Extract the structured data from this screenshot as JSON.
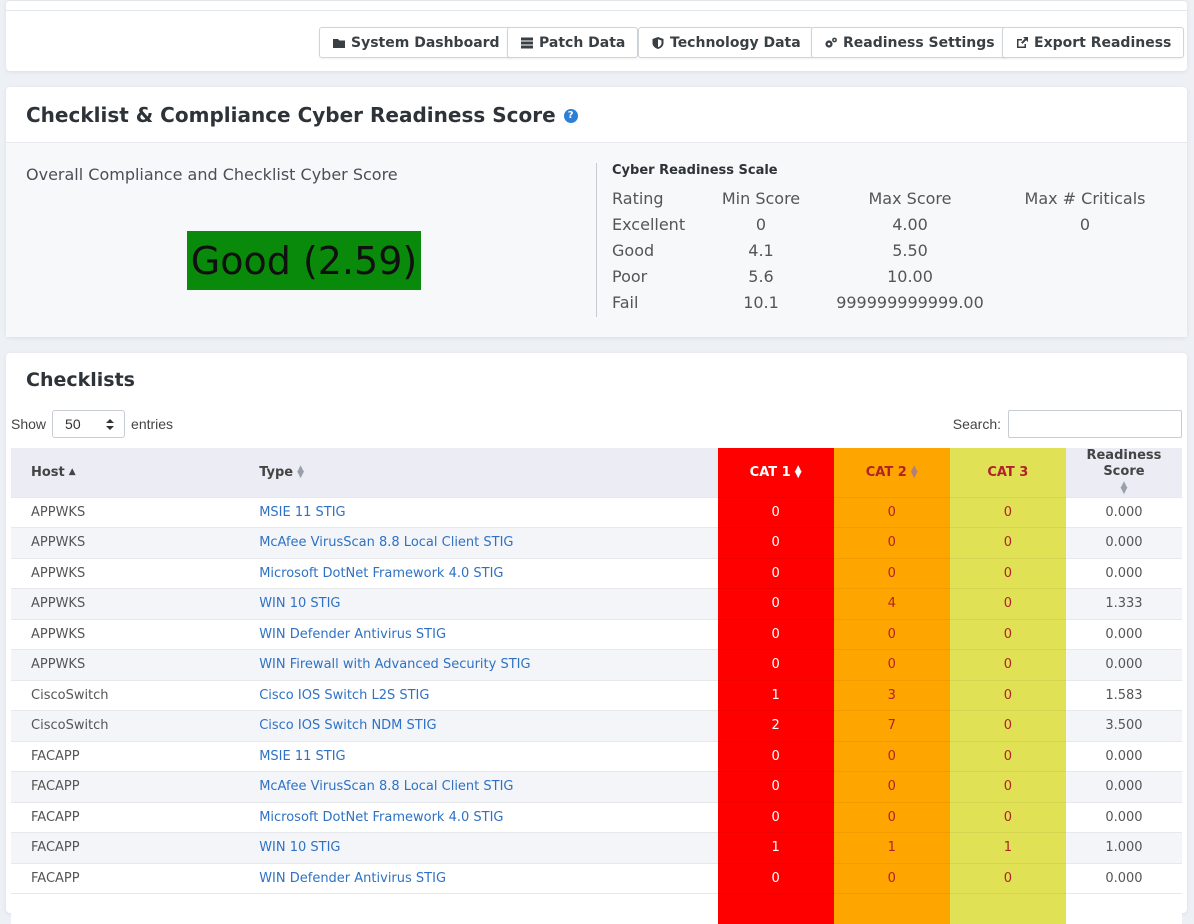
{
  "toolbar": {
    "buttons": [
      {
        "label": "System Dashboard",
        "icon": "folder-icon"
      },
      {
        "label": "Patch Data",
        "icon": "server-icon"
      },
      {
        "label": "Technology Data",
        "icon": "shield-icon"
      },
      {
        "label": "Readiness Settings",
        "icon": "gears-icon"
      },
      {
        "label": "Export Readiness",
        "icon": "external-link-icon"
      }
    ]
  },
  "score": {
    "title": "Checklist & Compliance Cyber Readiness Score",
    "help": "?",
    "overall_label": "Overall Compliance and Checklist Cyber Score",
    "value": "Good (2.59)",
    "value_color": "#0a8a0a",
    "scale": {
      "title": "Cyber Readiness Scale",
      "headers": [
        "Rating",
        "Min Score",
        "Max Score",
        "Max # Criticals"
      ],
      "rows": [
        {
          "rating": "Excellent",
          "min": "0",
          "max": "4.00",
          "crit": "0"
        },
        {
          "rating": "Good",
          "min": "4.1",
          "max": "5.50",
          "crit": ""
        },
        {
          "rating": "Poor",
          "min": "5.6",
          "max": "10.00",
          "crit": ""
        },
        {
          "rating": "Fail",
          "min": "10.1",
          "max": "999999999999.00",
          "crit": ""
        }
      ]
    }
  },
  "checklists": {
    "title": "Checklists",
    "show_label": "Show",
    "entries_value": "50",
    "entries_label": "entries",
    "search_label": "Search:",
    "search_value": "",
    "columns": {
      "host": "Host",
      "type": "Type",
      "cat1": "CAT 1",
      "cat2": "CAT 2",
      "cat3": "CAT 3",
      "readiness": "Readiness Score"
    },
    "colors": {
      "cat1": "#ff0000",
      "cat2": "#ffa500",
      "cat3": "#e1e156"
    },
    "rows": [
      {
        "host": "APPWKS",
        "type": "MSIE 11 STIG",
        "cat1": "0",
        "cat2": "0",
        "cat3": "0",
        "score": "0.000"
      },
      {
        "host": "APPWKS",
        "type": "McAfee VirusScan 8.8 Local Client STIG",
        "cat1": "0",
        "cat2": "0",
        "cat3": "0",
        "score": "0.000"
      },
      {
        "host": "APPWKS",
        "type": "Microsoft DotNet Framework 4.0 STIG",
        "cat1": "0",
        "cat2": "0",
        "cat3": "0",
        "score": "0.000"
      },
      {
        "host": "APPWKS",
        "type": "WIN 10 STIG",
        "cat1": "0",
        "cat2": "4",
        "cat3": "0",
        "score": "1.333"
      },
      {
        "host": "APPWKS",
        "type": "WIN Defender Antivirus STIG",
        "cat1": "0",
        "cat2": "0",
        "cat3": "0",
        "score": "0.000"
      },
      {
        "host": "APPWKS",
        "type": "WIN Firewall with Advanced Security STIG",
        "cat1": "0",
        "cat2": "0",
        "cat3": "0",
        "score": "0.000"
      },
      {
        "host": "CiscoSwitch",
        "type": "Cisco IOS Switch L2S STIG",
        "cat1": "1",
        "cat2": "3",
        "cat3": "0",
        "score": "1.583"
      },
      {
        "host": "CiscoSwitch",
        "type": "Cisco IOS Switch NDM STIG",
        "cat1": "2",
        "cat2": "7",
        "cat3": "0",
        "score": "3.500"
      },
      {
        "host": "FACAPP",
        "type": "MSIE 11 STIG",
        "cat1": "0",
        "cat2": "0",
        "cat3": "0",
        "score": "0.000"
      },
      {
        "host": "FACAPP",
        "type": "McAfee VirusScan 8.8 Local Client STIG",
        "cat1": "0",
        "cat2": "0",
        "cat3": "0",
        "score": "0.000"
      },
      {
        "host": "FACAPP",
        "type": "Microsoft DotNet Framework 4.0 STIG",
        "cat1": "0",
        "cat2": "0",
        "cat3": "0",
        "score": "0.000"
      },
      {
        "host": "FACAPP",
        "type": "WIN 10 STIG",
        "cat1": "1",
        "cat2": "1",
        "cat3": "1",
        "score": "1.000"
      },
      {
        "host": "FACAPP",
        "type": "WIN Defender Antivirus STIG",
        "cat1": "0",
        "cat2": "0",
        "cat3": "0",
        "score": "0.000"
      }
    ]
  }
}
